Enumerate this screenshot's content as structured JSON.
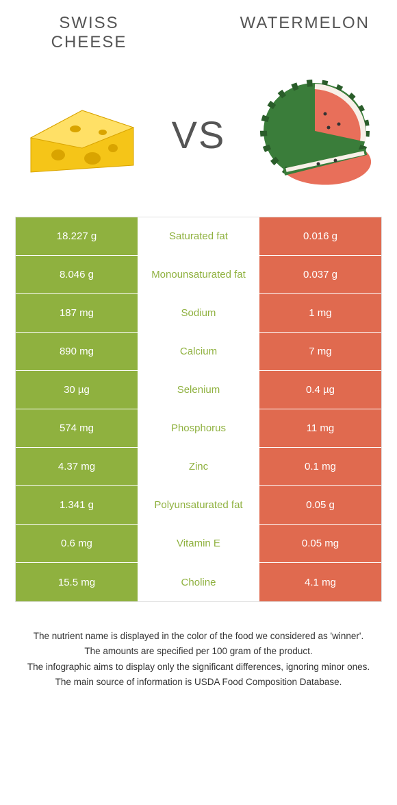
{
  "header": {
    "left_title": "Swiss cheese",
    "right_title": "Watermelon",
    "vs": "VS"
  },
  "colors": {
    "left": "#8fb13f",
    "right": "#e06a4f",
    "left_label": "#8fb13f",
    "right_label": "#e06a4f"
  },
  "rows": [
    {
      "left": "18.227 g",
      "label": "Saturated fat",
      "right": "0.016 g",
      "winner": "left"
    },
    {
      "left": "8.046 g",
      "label": "Monounsaturated fat",
      "right": "0.037 g",
      "winner": "left"
    },
    {
      "left": "187 mg",
      "label": "Sodium",
      "right": "1 mg",
      "winner": "left"
    },
    {
      "left": "890 mg",
      "label": "Calcium",
      "right": "7 mg",
      "winner": "left"
    },
    {
      "left": "30 µg",
      "label": "Selenium",
      "right": "0.4 µg",
      "winner": "left"
    },
    {
      "left": "574 mg",
      "label": "Phosphorus",
      "right": "11 mg",
      "winner": "left"
    },
    {
      "left": "4.37 mg",
      "label": "Zinc",
      "right": "0.1 mg",
      "winner": "left"
    },
    {
      "left": "1.341 g",
      "label": "Polyunsaturated fat",
      "right": "0.05 g",
      "winner": "left"
    },
    {
      "left": "0.6 mg",
      "label": "Vitamin E",
      "right": "0.05 mg",
      "winner": "left"
    },
    {
      "left": "15.5 mg",
      "label": "Choline",
      "right": "4.1 mg",
      "winner": "left"
    }
  ],
  "footer": {
    "line1": "The nutrient name is displayed in the color of the food we considered as 'winner'.",
    "line2": "The amounts are specified per 100 gram of the product.",
    "line3": "The infographic aims to display only the significant differences, ignoring minor ones.",
    "line4": "The main source of information is USDA Food Composition Database."
  }
}
